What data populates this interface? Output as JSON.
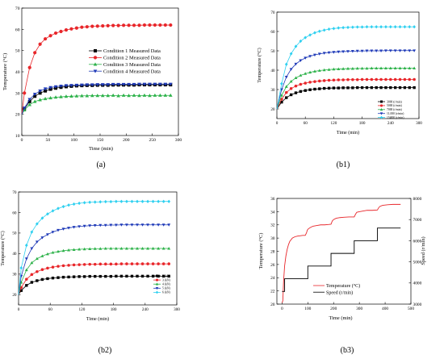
{
  "chart_data": [
    {
      "panel": "a",
      "type": "line",
      "caption": "(a)",
      "xlabel": "Time (min)",
      "ylabel": "Temperature (°C)",
      "xlim": [
        0,
        300
      ],
      "ylim": [
        10,
        70
      ],
      "xticks": [
        0,
        50,
        100,
        150,
        200,
        250,
        300
      ],
      "yticks": [
        10,
        20,
        30,
        40,
        50,
        60,
        70
      ],
      "legend_position": "right",
      "x": [
        0,
        5,
        15,
        25,
        35,
        45,
        55,
        65,
        75,
        85,
        95,
        105,
        115,
        125,
        135,
        145,
        155,
        165,
        175,
        185,
        195,
        205,
        215,
        225,
        235,
        245,
        255,
        265,
        275,
        285
      ],
      "series": [
        {
          "name": "Condition 1 Measured Data",
          "color": "#000000",
          "marker": "square",
          "values": [
            20,
            22.5,
            26,
            28.5,
            30,
            31,
            31.8,
            32.3,
            32.7,
            33,
            33.2,
            33.4,
            33.5,
            33.6,
            33.6,
            33.7,
            33.7,
            33.7,
            33.8,
            33.8,
            33.8,
            33.8,
            33.8,
            33.9,
            33.9,
            33.9,
            33.9,
            33.9,
            33.9,
            33.9
          ]
        },
        {
          "name": "Condition 2 Measured Data",
          "color": "#e8262a",
          "marker": "circle",
          "values": [
            20,
            30,
            42,
            49,
            53,
            55.5,
            57,
            58.2,
            59,
            59.7,
            60.2,
            60.6,
            61,
            61.2,
            61.4,
            61.5,
            61.6,
            61.7,
            61.8,
            61.8,
            61.9,
            61.9,
            61.9,
            61.9,
            62,
            62,
            62,
            62,
            62,
            62
          ]
        },
        {
          "name": "Condition 3 Measured Data",
          "color": "#2db24a",
          "marker": "triangle",
          "values": [
            20,
            22,
            24.5,
            26,
            26.8,
            27.3,
            27.7,
            28,
            28.2,
            28.4,
            28.5,
            28.6,
            28.7,
            28.7,
            28.8,
            28.8,
            28.8,
            28.8,
            28.9,
            28.7,
            28.9,
            28.8,
            28.9,
            28.8,
            28.9,
            28.8,
            28.9,
            28.9,
            28.9,
            28.9
          ]
        },
        {
          "name": "Condition 4 Measured Data",
          "color": "#1f3ab8",
          "marker": "triangle-down",
          "values": [
            20,
            23,
            27,
            29.5,
            31,
            32,
            32.6,
            33,
            33.3,
            33.5,
            33.6,
            33.7,
            33.8,
            33.9,
            33.9,
            34,
            34,
            34,
            34.1,
            34.1,
            34.1,
            34.1,
            34.1,
            34.2,
            34.2,
            34.2,
            34.2,
            34.2,
            34.2,
            34.2
          ]
        }
      ]
    },
    {
      "panel": "b1",
      "type": "line",
      "caption": "(b1)",
      "xlabel": "Time (min)",
      "ylabel": "Temperature (°C)",
      "xlim": [
        0,
        300
      ],
      "ylim": [
        15,
        70
      ],
      "xticks": [
        0,
        60,
        120,
        180,
        240,
        300
      ],
      "yticks": [
        20,
        30,
        40,
        50,
        60,
        70
      ],
      "legend_position": "bottom-right",
      "x": [
        0,
        10,
        20,
        30,
        40,
        50,
        60,
        70,
        80,
        90,
        100,
        110,
        120,
        130,
        140,
        150,
        160,
        170,
        180,
        190,
        200,
        210,
        220,
        230,
        240,
        250,
        260,
        270,
        280,
        290
      ],
      "series": [
        {
          "name": "3000 (r/min)",
          "color": "#000000",
          "marker": "square",
          "values": [
            20,
            23.5,
            25.8,
            27.3,
            28.3,
            29,
            29.5,
            29.9,
            30.2,
            30.4,
            30.6,
            30.7,
            30.8,
            30.8,
            30.9,
            30.9,
            30.9,
            31,
            31,
            31,
            31,
            31,
            31,
            31,
            31,
            31,
            31,
            31,
            31,
            31
          ]
        },
        {
          "name": "5000 (r/min)",
          "color": "#e8262a",
          "marker": "circle",
          "values": [
            20,
            25,
            28.5,
            30.5,
            31.8,
            32.7,
            33.3,
            33.8,
            34.1,
            34.4,
            34.6,
            34.8,
            34.9,
            35,
            35,
            35.1,
            35.1,
            35.1,
            35.2,
            35.2,
            35.2,
            35.2,
            35.2,
            35.2,
            35.2,
            35.2,
            35.2,
            35.2,
            35.2,
            35.2
          ]
        },
        {
          "name": "7000 (r/min)",
          "color": "#2db24a",
          "marker": "triangle",
          "values": [
            20,
            27,
            31.5,
            34.2,
            36,
            37.3,
            38.2,
            38.9,
            39.4,
            39.8,
            40.1,
            40.3,
            40.5,
            40.6,
            40.7,
            40.8,
            40.8,
            40.9,
            40.9,
            40.9,
            41,
            41,
            41,
            41,
            41,
            41,
            41,
            41,
            41,
            41
          ]
        },
        {
          "name": "11,000 (r/min)",
          "color": "#1f3ab8",
          "marker": "triangle-down",
          "values": [
            20,
            30,
            36.5,
            40.5,
            43.2,
            45,
            46.3,
            47.2,
            47.9,
            48.4,
            48.8,
            49.1,
            49.3,
            49.5,
            49.6,
            49.7,
            49.8,
            49.9,
            49.9,
            50,
            50,
            50,
            50,
            50.1,
            50.1,
            50.1,
            50.1,
            50.1,
            50.1,
            50.1
          ]
        },
        {
          "name": "15,000 (r/min)",
          "color": "#2fd0f0",
          "marker": "diamond",
          "values": [
            20,
            33,
            43,
            48.5,
            52.3,
            55,
            56.8,
            58.2,
            59.3,
            60.1,
            60.7,
            61.2,
            61.5,
            61.8,
            62,
            62.1,
            62.2,
            62.3,
            62.3,
            62.4,
            62.4,
            62.4,
            62.4,
            62.4,
            62.4,
            62.4,
            62.4,
            62.4,
            62.4,
            62.4
          ]
        }
      ]
    },
    {
      "panel": "b2",
      "type": "line",
      "caption": "(b2)",
      "xlabel": "Time (min)",
      "ylabel": "Temperature (°C)",
      "xlim": [
        0,
        300
      ],
      "ylim": [
        15,
        70
      ],
      "xticks": [
        0,
        60,
        120,
        180,
        240,
        300
      ],
      "yticks": [
        20,
        30,
        40,
        50,
        60,
        70
      ],
      "legend_position": "bottom-right",
      "x": [
        0,
        5,
        15,
        25,
        35,
        45,
        55,
        65,
        75,
        85,
        95,
        105,
        115,
        125,
        135,
        145,
        155,
        165,
        175,
        185,
        195,
        205,
        215,
        225,
        235,
        245,
        255,
        265,
        275,
        285
      ],
      "series": [
        {
          "name": "2 (kN)",
          "color": "#000000",
          "marker": "square",
          "values": [
            20,
            22,
            24.5,
            26,
            26.8,
            27.4,
            27.8,
            28.1,
            28.3,
            28.5,
            28.6,
            28.7,
            28.8,
            28.8,
            28.9,
            28.9,
            28.9,
            28.9,
            28.9,
            29,
            29,
            29,
            29,
            29,
            29,
            29,
            29,
            29,
            29,
            29
          ]
        },
        {
          "name": "3 (kN)",
          "color": "#e8262a",
          "marker": "circle",
          "values": [
            20,
            23.5,
            27.5,
            29.8,
            31.2,
            32.2,
            32.9,
            33.4,
            33.8,
            34.1,
            34.3,
            34.5,
            34.6,
            34.7,
            34.8,
            34.8,
            34.9,
            34.9,
            34.9,
            34.9,
            35,
            35,
            35,
            35,
            35,
            35,
            35,
            35,
            35,
            35
          ]
        },
        {
          "name": "4 (kN)",
          "color": "#2db24a",
          "marker": "triangle",
          "values": [
            20,
            26,
            32,
            35.5,
            37.5,
            38.8,
            39.8,
            40.5,
            41,
            41.4,
            41.7,
            41.9,
            42.1,
            42.2,
            42.3,
            42.4,
            42.4,
            42.5,
            42.5,
            42.5,
            42.5,
            42.5,
            42.5,
            42.5,
            42.5,
            42.5,
            42.5,
            42.5,
            42.5,
            42.5
          ]
        },
        {
          "name": "5 (kN)",
          "color": "#1f3ab8",
          "marker": "triangle-down",
          "values": [
            20,
            29,
            37.5,
            42.5,
            45.7,
            47.8,
            49.3,
            50.5,
            51.4,
            52,
            52.5,
            52.9,
            53.2,
            53.4,
            53.6,
            53.7,
            53.8,
            53.8,
            53.9,
            53.9,
            54,
            54,
            54,
            54,
            54,
            54,
            54,
            54,
            54,
            54
          ]
        },
        {
          "name": "6 (kN)",
          "color": "#2fd0f0",
          "marker": "diamond",
          "values": [
            20,
            33,
            44,
            50.5,
            54.5,
            57.3,
            59.3,
            60.8,
            62,
            62.9,
            63.6,
            64.1,
            64.5,
            64.8,
            65,
            65.1,
            65.2,
            65.3,
            65.3,
            65.4,
            65.4,
            65.4,
            65.4,
            65.4,
            65.4,
            65.4,
            65.4,
            65.4,
            65.4,
            65.4
          ]
        }
      ]
    },
    {
      "panel": "b3",
      "type": "line",
      "caption": "(b3)",
      "xlabel": "Time (min)",
      "ylabel": "Temperature (°C)",
      "ylabel_right": "Speed (r/min)",
      "xlim": [
        -20,
        500
      ],
      "ylim": [
        20,
        36
      ],
      "ylim_right": [
        3000,
        8000
      ],
      "xticks": [
        0,
        100,
        200,
        300,
        400,
        500
      ],
      "yticks": [
        20,
        22,
        24,
        26,
        28,
        30,
        32,
        34,
        36
      ],
      "yticks_right": [
        3000,
        4000,
        5000,
        6000,
        7000,
        8000
      ],
      "legend_position": "bottom-right",
      "series": [
        {
          "name": "Temperature (°C)",
          "color": "#e8262a",
          "axis": "left",
          "x": [
            0,
            3,
            6,
            10,
            15,
            20,
            25,
            30,
            40,
            50,
            60,
            70,
            80,
            90,
            95,
            98,
            102,
            110,
            120,
            135,
            150,
            165,
            180,
            190,
            195,
            200,
            210,
            225,
            240,
            260,
            280,
            285,
            290,
            300,
            315,
            330,
            350,
            370,
            375,
            380,
            390,
            410,
            430,
            460
          ],
          "values": [
            20.2,
            20.5,
            23.5,
            25.8,
            27.3,
            28.3,
            29,
            29.5,
            30,
            30.2,
            30.3,
            30.35,
            30.4,
            30.4,
            30.8,
            31.2,
            31.4,
            31.6,
            31.8,
            31.9,
            32,
            32,
            32.05,
            32.1,
            32.6,
            32.8,
            33,
            33.1,
            33.15,
            33.2,
            33.2,
            33.6,
            33.9,
            34,
            34.1,
            34.2,
            34.2,
            34.25,
            34.6,
            34.8,
            34.95,
            35.05,
            35.1,
            35.1
          ]
        },
        {
          "name": "Speed (r/min)",
          "color": "#000000",
          "axis": "right",
          "x": [
            0,
            10,
            10,
            100,
            100,
            190,
            190,
            280,
            280,
            370,
            370,
            460
          ],
          "values": [
            3600,
            3600,
            4200,
            4200,
            4800,
            4800,
            5400,
            5400,
            6000,
            6000,
            6600,
            6600
          ]
        }
      ]
    }
  ]
}
